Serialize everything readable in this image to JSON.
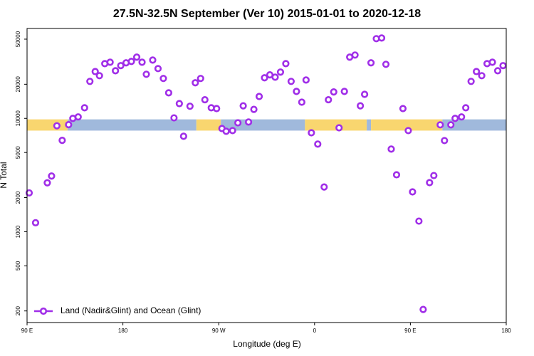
{
  "chart_data": {
    "type": "scatter",
    "title": "27.5N-32.5N September (Ver 10)   2015-01-01 to 2020-12-18",
    "xlabel": "Longitude (deg E)",
    "ylabel": "N Total",
    "log_y": true,
    "legend": "bottom-left",
    "xlim": [
      90,
      540
    ],
    "xticks": [
      {
        "value": 90,
        "label": "90 E"
      },
      180,
      {
        "value": 270,
        "label": "90 W"
      },
      {
        "value": 360,
        "label": "0"
      },
      {
        "value": 450,
        "label": "90 E"
      },
      {
        "value": 540,
        "label": "180"
      }
    ],
    "ylim": [
      158,
      62100
    ],
    "yticks": [
      200,
      500,
      1000,
      2000,
      5000,
      10000,
      20000,
      50000
    ],
    "band": {
      "ylim": [
        7800,
        9800
      ],
      "segments": [
        {
          "x": [
            90,
            128
          ],
          "color": "#f9d66f"
        },
        {
          "x": [
            128,
            249
          ],
          "color": "#a0b9dc"
        },
        {
          "x": [
            249,
            272
          ],
          "color": "#f9d66f"
        },
        {
          "x": [
            272,
            351
          ],
          "color": "#a0b9dc"
        },
        {
          "x": [
            351,
            409
          ],
          "color": "#f9d66f"
        },
        {
          "x": [
            409,
            413
          ],
          "color": "#a0b9dc"
        },
        {
          "x": [
            413,
            480
          ],
          "color": "#f9d66f"
        },
        {
          "x": [
            480,
            540
          ],
          "color": "#a0b9dc"
        }
      ]
    },
    "series": [
      {
        "name": "Land (Nadir&Glint) and Ocean (Glint)",
        "color": "#a02ee8",
        "x": [
          92,
          98,
          109,
          113,
          118,
          123,
          129,
          133,
          138,
          144,
          149,
          154,
          158,
          163,
          168,
          173,
          178,
          183,
          188,
          193,
          198,
          202,
          208,
          213,
          218,
          223,
          228,
          233,
          237,
          243,
          248,
          253,
          257,
          263,
          268,
          273,
          277,
          283,
          288,
          293,
          298,
          303,
          308,
          313,
          318,
          323,
          328,
          333,
          338,
          343,
          348,
          352,
          357,
          363,
          369,
          373,
          378,
          383,
          388,
          393,
          398,
          403,
          407,
          413,
          418,
          423,
          427,
          432,
          437,
          443,
          448,
          452,
          458,
          462,
          468,
          472,
          478,
          482,
          488,
          492,
          498,
          502,
          507,
          512,
          517,
          522,
          527,
          532,
          537
        ],
        "values": [
          2200,
          1200,
          2700,
          3100,
          8600,
          6400,
          8800,
          10000,
          10300,
          12400,
          21200,
          25900,
          23800,
          30400,
          31300,
          26300,
          29200,
          30900,
          31800,
          34700,
          31300,
          24500,
          32700,
          27500,
          22500,
          16800,
          10100,
          13500,
          6950,
          12800,
          20600,
          22500,
          14600,
          12400,
          12200,
          8140,
          7690,
          7800,
          9140,
          12900,
          9290,
          12000,
          15600,
          22800,
          24200,
          23100,
          25600,
          30400,
          21200,
          17300,
          13900,
          21800,
          7460,
          5930,
          2480,
          14600,
          17100,
          8260,
          17300,
          34700,
          36200,
          12900,
          16300,
          30900,
          50500,
          51200,
          30000,
          5360,
          3180,
          12200,
          7800,
          2245,
          1240,
          206,
          2710,
          3130,
          8770,
          6370,
          8770,
          10000,
          10300,
          12400,
          21200,
          25900,
          23800,
          30400,
          31300,
          26300,
          29200
        ]
      }
    ]
  }
}
